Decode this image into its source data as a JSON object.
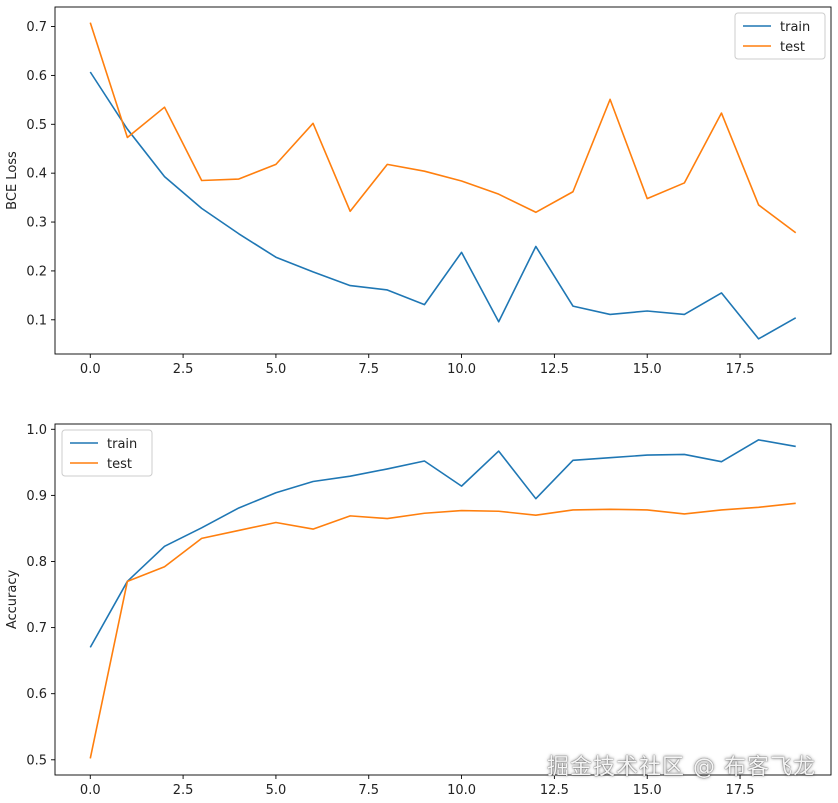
{
  "colors": {
    "train": "#1f77b4",
    "test": "#ff7f0e"
  },
  "chart_data": [
    {
      "type": "line",
      "ylabel": "BCE Loss",
      "xlabel": "",
      "xlim": [
        -0.95,
        19.95
      ],
      "ylim": [
        0.03,
        0.74
      ],
      "xticks": [
        0,
        2.5,
        5,
        7.5,
        10,
        12.5,
        15,
        17.5
      ],
      "xtick_labels": [
        "0.0",
        "2.5",
        "5.0",
        "7.5",
        "10.0",
        "12.5",
        "15.0",
        "17.5"
      ],
      "yticks": [
        0.1,
        0.2,
        0.3,
        0.4,
        0.5,
        0.6,
        0.7
      ],
      "ytick_labels": [
        "0.1",
        "0.2",
        "0.3",
        "0.4",
        "0.5",
        "0.6",
        "0.7"
      ],
      "legend_position": "top-right",
      "x": [
        0,
        1,
        2,
        3,
        4,
        5,
        6,
        7,
        8,
        9,
        10,
        11,
        12,
        13,
        14,
        15,
        16,
        17,
        18,
        19
      ],
      "series": [
        {
          "name": "train",
          "color": "#1f77b4",
          "values": [
            0.607,
            0.49,
            0.393,
            0.328,
            0.276,
            0.228,
            0.198,
            0.17,
            0.161,
            0.131,
            0.238,
            0.096,
            0.25,
            0.128,
            0.111,
            0.118,
            0.111,
            0.155,
            0.061,
            0.104
          ]
        },
        {
          "name": "test",
          "color": "#ff7f0e",
          "values": [
            0.708,
            0.473,
            0.535,
            0.385,
            0.388,
            0.418,
            0.502,
            0.322,
            0.418,
            0.404,
            0.384,
            0.357,
            0.32,
            0.362,
            0.551,
            0.348,
            0.38,
            0.523,
            0.335,
            0.278
          ]
        }
      ]
    },
    {
      "type": "line",
      "ylabel": "Accuracy",
      "xlabel": "",
      "xlim": [
        -0.95,
        19.95
      ],
      "ylim": [
        0.477,
        1.008
      ],
      "xticks": [
        0,
        2.5,
        5,
        7.5,
        10,
        12.5,
        15,
        17.5
      ],
      "xtick_labels": [
        "0.0",
        "2.5",
        "5.0",
        "7.5",
        "10.0",
        "12.5",
        "15.0",
        "17.5"
      ],
      "yticks": [
        0.5,
        0.6,
        0.7,
        0.8,
        0.9,
        1.0
      ],
      "ytick_labels": [
        "0.5",
        "0.6",
        "0.7",
        "0.8",
        "0.9",
        "1.0"
      ],
      "legend_position": "top-left",
      "x": [
        0,
        1,
        2,
        3,
        4,
        5,
        6,
        7,
        8,
        9,
        10,
        11,
        12,
        13,
        14,
        15,
        16,
        17,
        18,
        19
      ],
      "series": [
        {
          "name": "train",
          "color": "#1f77b4",
          "values": [
            0.67,
            0.77,
            0.823,
            0.851,
            0.881,
            0.904,
            0.921,
            0.929,
            0.94,
            0.952,
            0.914,
            0.967,
            0.895,
            0.953,
            0.957,
            0.961,
            0.962,
            0.951,
            0.984,
            0.974
          ]
        },
        {
          "name": "test",
          "color": "#ff7f0e",
          "values": [
            0.502,
            0.77,
            0.792,
            0.835,
            0.847,
            0.859,
            0.849,
            0.869,
            0.865,
            0.873,
            0.877,
            0.876,
            0.87,
            0.878,
            0.879,
            0.878,
            0.872,
            0.878,
            0.882,
            0.888
          ]
        }
      ]
    }
  ],
  "watermark": "掘金技术社区 @ 布客飞龙"
}
